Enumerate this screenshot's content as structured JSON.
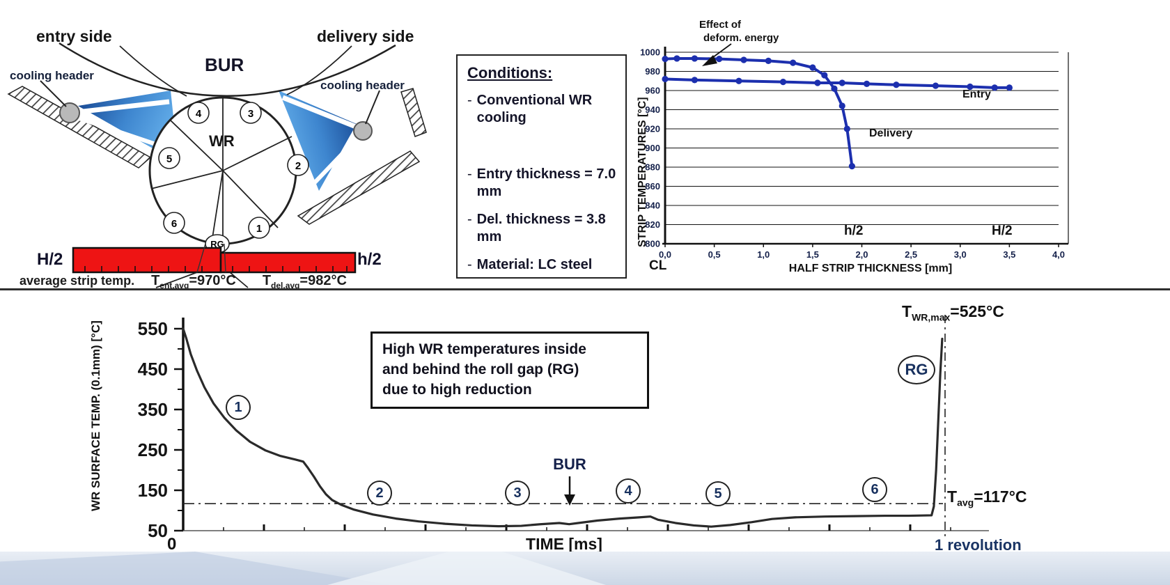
{
  "colors": {
    "curve_blue": "#1c2fae",
    "strip_red": "#ee1414",
    "spray_dark": "#10408f",
    "spray_light": "#5aa7e8",
    "wr_curve": "#2a2a2a"
  },
  "top_left_diagram": {
    "entry_side": "entry side",
    "delivery_side": "delivery side",
    "bur": "BUR",
    "wr": "WR",
    "cooling_header_left": "cooling header",
    "cooling_header_right": "cooling header",
    "rg": "RG",
    "sectors": [
      "1",
      "2",
      "3",
      "4",
      "5",
      "6"
    ],
    "H2": "H/2",
    "h2": "h/2",
    "avg_strip_temp_label": "average strip temp.",
    "t_ent": {
      "base": "T",
      "sub": "ent,avg",
      "rest": "=970°C"
    },
    "t_del": {
      "base": "T",
      "sub": "del,avg",
      "rest": "=982°C"
    }
  },
  "conditions_box": {
    "title": "Conditions:",
    "bullet": "-",
    "items": [
      "Conventional WR cooling",
      "Entry thickness = 7.0 mm",
      "Del. thickness = 3.8 mm",
      "Material: LC steel"
    ]
  },
  "chart_data": [
    {
      "type": "line",
      "title": "",
      "ylabel": "STRIP TEMPERATURES [°C]",
      "xlabel": "HALF STRIP THICKNESS [mm]",
      "ylim": [
        800,
        1000
      ],
      "ytick_step": 20,
      "xlim": [
        0,
        4
      ],
      "xtick_labels": [
        "0,0",
        "0,5",
        "1,0",
        "1,5",
        "2,0",
        "2,5",
        "3,0",
        "3,5",
        "4,0"
      ],
      "cl_label": "CL",
      "grid": "horizontal",
      "annotations": {
        "effect_line1": "Effect of",
        "effect_line2": "deform. energy",
        "h2": "h/2",
        "H2": "H/2"
      },
      "series": [
        {
          "name": "Entry",
          "points": [
            [
              0,
              972
            ],
            [
              0.3,
              971
            ],
            [
              0.75,
              970
            ],
            [
              1.2,
              969
            ],
            [
              1.55,
              968
            ],
            [
              1.8,
              968
            ],
            [
              2.05,
              967
            ],
            [
              2.35,
              966
            ],
            [
              2.75,
              965
            ],
            [
              3.1,
              964
            ],
            [
              3.35,
              963
            ],
            [
              3.5,
              963
            ]
          ]
        },
        {
          "name": "Delivery",
          "points": [
            [
              0,
              993
            ],
            [
              0.12,
              993.5
            ],
            [
              0.3,
              993.5
            ],
            [
              0.55,
              993
            ],
            [
              0.8,
              992
            ],
            [
              1.05,
              991
            ],
            [
              1.3,
              989
            ],
            [
              1.5,
              984
            ],
            [
              1.62,
              976
            ],
            [
              1.72,
              962
            ],
            [
              1.8,
              944
            ],
            [
              1.85,
              920
            ],
            [
              1.9,
              881
            ]
          ]
        }
      ]
    },
    {
      "type": "line",
      "title": "",
      "ylabel": "WR SURFACE TEMP. (0.1mm) [°C]",
      "xlabel": "TIME [ms]",
      "ylim": [
        50,
        550
      ],
      "yticks_major": [
        550,
        450,
        350,
        250,
        150,
        50
      ],
      "yticks_minor": [
        500,
        400,
        300,
        200,
        100
      ],
      "x_origin_label": "0",
      "x_end_label": "1 revolution",
      "avg_line_value": 117,
      "t_wr_max": {
        "base": "T",
        "sub": "WR,max",
        "rest": "=525°C"
      },
      "t_avg": {
        "base": "T",
        "sub": "avg",
        "rest": "=117°C"
      },
      "region_labels": [
        "1",
        "2",
        "3",
        "4",
        "5",
        "6"
      ],
      "bur_label": "BUR",
      "rg_label": "RG",
      "callout_lines": [
        "High WR temperatures inside",
        "and behind the roll gap (RG)",
        "due to high reduction"
      ],
      "series": [
        {
          "name": "WR surface temperature",
          "points": [
            [
              0,
              550
            ],
            [
              0.004,
              527
            ],
            [
              0.01,
              487
            ],
            [
              0.018,
              447
            ],
            [
              0.028,
              405
            ],
            [
              0.04,
              365
            ],
            [
              0.054,
              330
            ],
            [
              0.07,
              298
            ],
            [
              0.088,
              270
            ],
            [
              0.108,
              249
            ],
            [
              0.128,
              235
            ],
            [
              0.148,
              226
            ],
            [
              0.158,
              221
            ],
            [
              0.164,
              206
            ],
            [
              0.172,
              184
            ],
            [
              0.18,
              160
            ],
            [
              0.188,
              140
            ],
            [
              0.196,
              126
            ],
            [
              0.208,
              114
            ],
            [
              0.225,
              102
            ],
            [
              0.25,
              90
            ],
            [
              0.28,
              80
            ],
            [
              0.31,
              73
            ],
            [
              0.345,
              67
            ],
            [
              0.38,
              63
            ],
            [
              0.415,
              61
            ],
            [
              0.445,
              62
            ],
            [
              0.47,
              66
            ],
            [
              0.495,
              69
            ],
            [
              0.508,
              66
            ],
            [
              0.52,
              69
            ],
            [
              0.545,
              75
            ],
            [
              0.575,
              80
            ],
            [
              0.6,
              83
            ],
            [
              0.615,
              85
            ],
            [
              0.625,
              77
            ],
            [
              0.648,
              69
            ],
            [
              0.672,
              63
            ],
            [
              0.695,
              60
            ],
            [
              0.72,
              64
            ],
            [
              0.748,
              71
            ],
            [
              0.775,
              79
            ],
            [
              0.805,
              83
            ],
            [
              0.845,
              85
            ],
            [
              0.885,
              86
            ],
            [
              0.925,
              87
            ],
            [
              0.955,
              87
            ],
            [
              0.985,
              88
            ],
            [
              0.988,
              110
            ],
            [
              0.991,
              200
            ],
            [
              0.994,
              330
            ],
            [
              0.9965,
              440
            ],
            [
              0.999,
              525
            ]
          ]
        }
      ]
    }
  ]
}
